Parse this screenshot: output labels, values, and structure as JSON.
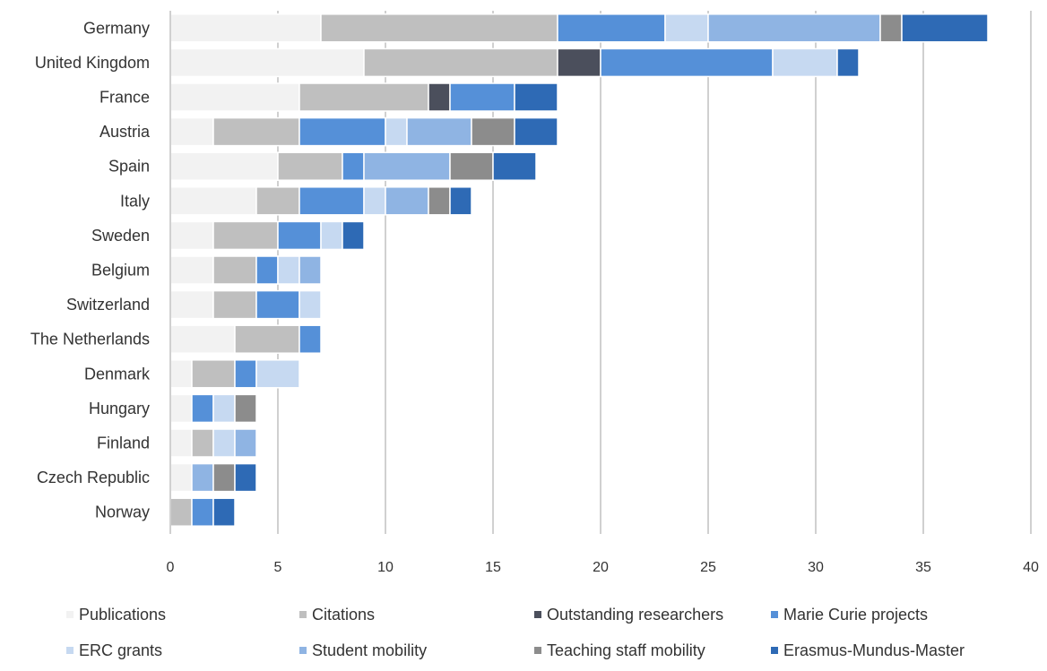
{
  "chart_data": {
    "type": "bar",
    "orientation": "horizontal",
    "stacked": true,
    "title": "",
    "xlabel": "",
    "ylabel": "",
    "xlim": [
      0,
      40
    ],
    "xticks": [
      0,
      5,
      10,
      15,
      20,
      25,
      30,
      35,
      40
    ],
    "grid": "vertical",
    "legend_position": "bottom",
    "categories": [
      "Germany",
      "United Kingdom",
      "France",
      "Austria",
      "Spain",
      "Italy",
      "Sweden",
      "Belgium",
      "Switzerland",
      "The Netherlands",
      "Denmark",
      "Hungary",
      "Finland",
      "Czech Republic",
      "Norway"
    ],
    "series": [
      {
        "name": "Publications",
        "color": "#f2f2f2",
        "values": [
          7,
          9,
          6,
          2,
          5,
          4,
          2,
          2,
          2,
          3,
          1,
          1,
          1,
          1,
          0
        ]
      },
      {
        "name": "Citations",
        "color": "#bfbfbf",
        "values": [
          11,
          9,
          6,
          4,
          3,
          2,
          3,
          2,
          2,
          3,
          2,
          0,
          1,
          0,
          1
        ]
      },
      {
        "name": "Outstanding researchers",
        "color": "#4b4f5c",
        "values": [
          0,
          2,
          1,
          0,
          0,
          0,
          0,
          0,
          0,
          0,
          0,
          0,
          0,
          0,
          0
        ]
      },
      {
        "name": "Marie Curie projects",
        "color": "#5590d8",
        "values": [
          5,
          8,
          3,
          4,
          1,
          3,
          2,
          1,
          2,
          1,
          1,
          1,
          0,
          0,
          1
        ]
      },
      {
        "name": "ERC grants",
        "color": "#c6d9f1",
        "values": [
          2,
          3,
          0,
          1,
          0,
          1,
          1,
          1,
          1,
          0,
          2,
          1,
          1,
          0,
          0
        ]
      },
      {
        "name": "Student mobility",
        "color": "#8fb4e3",
        "values": [
          8,
          0,
          0,
          3,
          4,
          2,
          0,
          1,
          0,
          0,
          0,
          0,
          1,
          1,
          0
        ]
      },
      {
        "name": "Teaching staff mobility",
        "color": "#8c8c8c",
        "values": [
          1,
          0,
          0,
          2,
          2,
          1,
          0,
          0,
          0,
          0,
          0,
          1,
          0,
          1,
          0
        ]
      },
      {
        "name": "Erasmus-Mundus-Master",
        "color": "#2e6ab5",
        "values": [
          4,
          1,
          2,
          2,
          2,
          1,
          1,
          0,
          0,
          0,
          0,
          0,
          0,
          1,
          1
        ]
      }
    ]
  }
}
